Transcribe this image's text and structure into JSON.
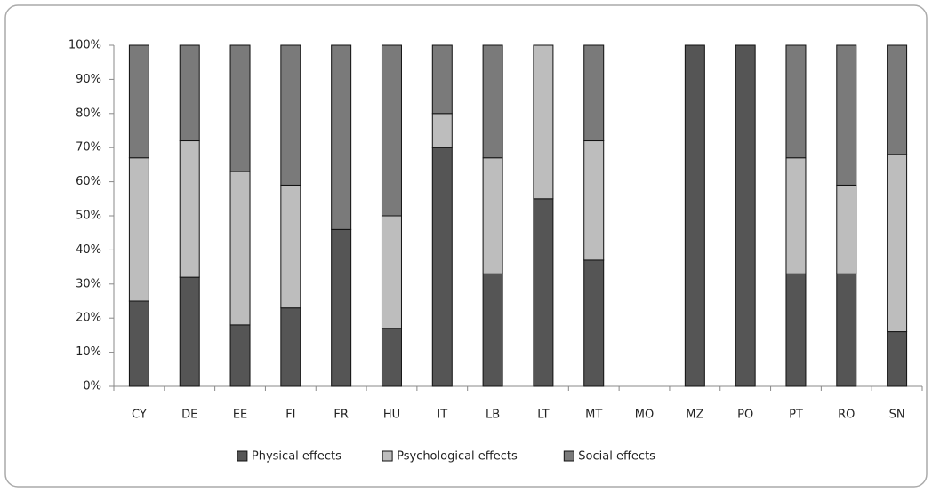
{
  "chart_data": {
    "type": "stacked_bar",
    "categories": [
      "CY",
      "DE",
      "EE",
      "FI",
      "FR",
      "HU",
      "IT",
      "LB",
      "LT",
      "MT",
      "MO",
      "MZ",
      "PO",
      "PT",
      "RO",
      "SN"
    ],
    "series": [
      {
        "name": "Physical effects",
        "color": "#555555",
        "values": [
          25,
          32,
          18,
          23,
          46,
          17,
          70,
          33,
          55,
          37,
          null,
          100,
          100,
          33,
          33,
          16
        ]
      },
      {
        "name": "Psychological effects",
        "color": "#bdbdbd",
        "values": [
          42,
          40,
          45,
          36,
          0,
          33,
          10,
          34,
          45,
          35,
          null,
          0,
          0,
          34,
          26,
          52
        ]
      },
      {
        "name": "Social effects",
        "color": "#7a7a7a",
        "values": [
          33,
          28,
          37,
          41,
          54,
          50,
          20,
          33,
          0,
          28,
          null,
          0,
          0,
          33,
          41,
          32
        ]
      }
    ],
    "ylim": [
      0,
      100
    ],
    "yticks": [
      {
        "value": 0,
        "label": "0%"
      },
      {
        "value": 10,
        "label": "10%"
      },
      {
        "value": 20,
        "label": "20%"
      },
      {
        "value": 30,
        "label": "30%"
      },
      {
        "value": 40,
        "label": "40%"
      },
      {
        "value": 50,
        "label": "50%"
      },
      {
        "value": 60,
        "label": "60%"
      },
      {
        "value": 70,
        "label": "70%"
      },
      {
        "value": 80,
        "label": "80%"
      },
      {
        "value": 90,
        "label": "90%"
      },
      {
        "value": 100,
        "label": "100%"
      }
    ],
    "legend": "bottom"
  }
}
